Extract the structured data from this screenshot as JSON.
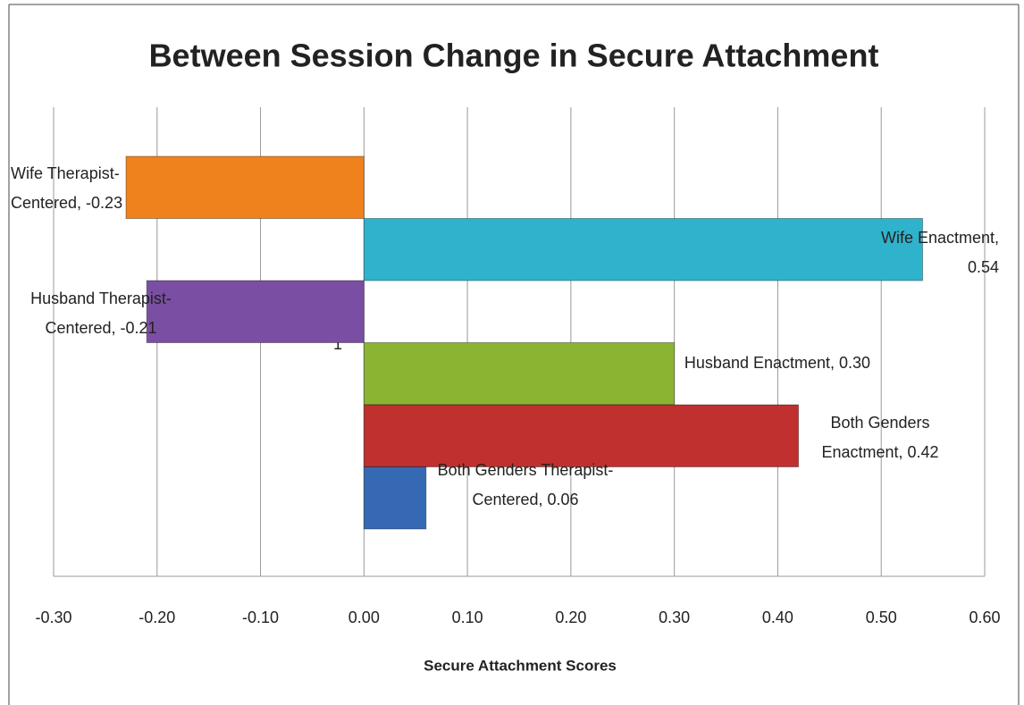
{
  "chart_data": {
    "type": "barh",
    "title": "Between Session Change in Secure Attachment",
    "xlabel": "Secure Attachment  Scores",
    "values": [
      -0.23,
      0.54,
      -0.21,
      0.3,
      0.42,
      0.06
    ],
    "value_labels": [
      "Wife Therapist-Centered, -0.23",
      "Wife Enactment, 0.54",
      "Husband Therapist-Centered, -0.21",
      "Husband Enactment, 0.30",
      "Both Genders Enactment, 0.42",
      "Both Genders Therapist-Centered, 0.06"
    ],
    "colors": [
      "#f0821e",
      "#2fb3cc",
      "#7a4fa3",
      "#8bb433",
      "#c0302e",
      "#3669b3"
    ],
    "xlim": [
      -0.3,
      0.6
    ],
    "xticks": [
      {
        "value": -0.3,
        "label": "-0.30"
      },
      {
        "value": -0.2,
        "label": "-0.20"
      },
      {
        "value": -0.1,
        "label": "-0.10"
      },
      {
        "value": 0,
        "label": "0.00"
      },
      {
        "value": 0.1,
        "label": "0.10"
      },
      {
        "value": 0.2,
        "label": "0.20"
      },
      {
        "value": 0.3,
        "label": "0.30"
      },
      {
        "value": 0.4,
        "label": "0.40"
      },
      {
        "value": 0.5,
        "label": "0.50"
      },
      {
        "value": 0.6,
        "label": "0.60"
      }
    ],
    "grid": true,
    "annotations": [
      "1"
    ]
  }
}
